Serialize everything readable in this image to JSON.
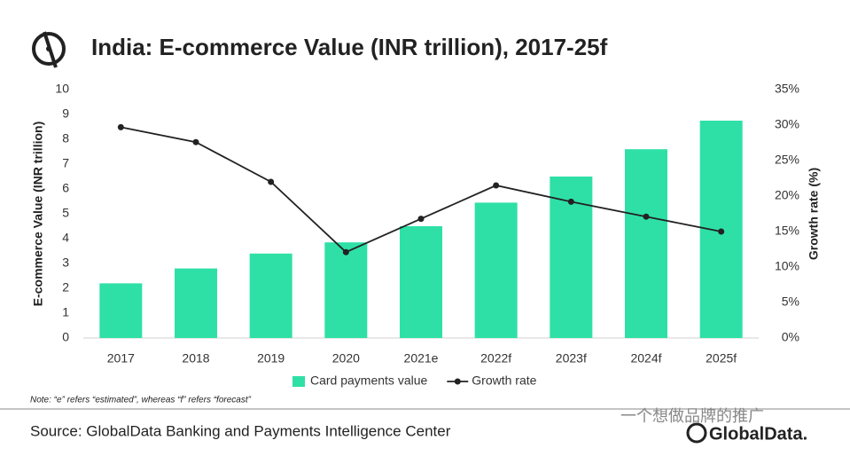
{
  "chart_data": {
    "type": "bar",
    "title": "India: E-commerce Value (INR trillion), 2017-25f",
    "ylabel": "E-commerce Value (INR trillion)",
    "y2label": "Growth rate (%)",
    "categories": [
      "2017",
      "2018",
      "2019",
      "2020",
      "2021e",
      "2022f",
      "2023f",
      "2024f",
      "2025f"
    ],
    "series": [
      {
        "name": "Card payments value",
        "type": "bar",
        "color": "#2ee0a6",
        "values": [
          2.2,
          2.8,
          3.4,
          3.85,
          4.5,
          5.45,
          6.5,
          7.6,
          8.75
        ]
      },
      {
        "name": "Growth rate",
        "type": "line",
        "axis": "y2",
        "color": "#222222",
        "values": [
          29.7,
          27.6,
          22.0,
          12.1,
          16.8,
          21.5,
          19.2,
          17.1,
          15.0
        ]
      }
    ],
    "ylim": [
      0,
      10
    ],
    "yticks": [
      0,
      1,
      2,
      3,
      4,
      5,
      6,
      7,
      8,
      9,
      10
    ],
    "y2lim": [
      0,
      35
    ],
    "y2ticks": [
      {
        "value": 0,
        "label": "0%"
      },
      {
        "value": 5,
        "label": "5%"
      },
      {
        "value": 10,
        "label": "10%"
      },
      {
        "value": 15,
        "label": "15%"
      },
      {
        "value": 20,
        "label": "20%"
      },
      {
        "value": 25,
        "label": "25%"
      },
      {
        "value": 30,
        "label": "30%"
      },
      {
        "value": 35,
        "label": "35%"
      }
    ],
    "grid": false,
    "legend": "bottom",
    "note": "Note: “e” refers “estimated”, whereas “f” refers “forecast”"
  },
  "footer": {
    "source": "Source: GlobalData Banking and Payments Intelligence Center",
    "logo": "GlobalData.",
    "watermark": "一个想做品牌的推广"
  }
}
